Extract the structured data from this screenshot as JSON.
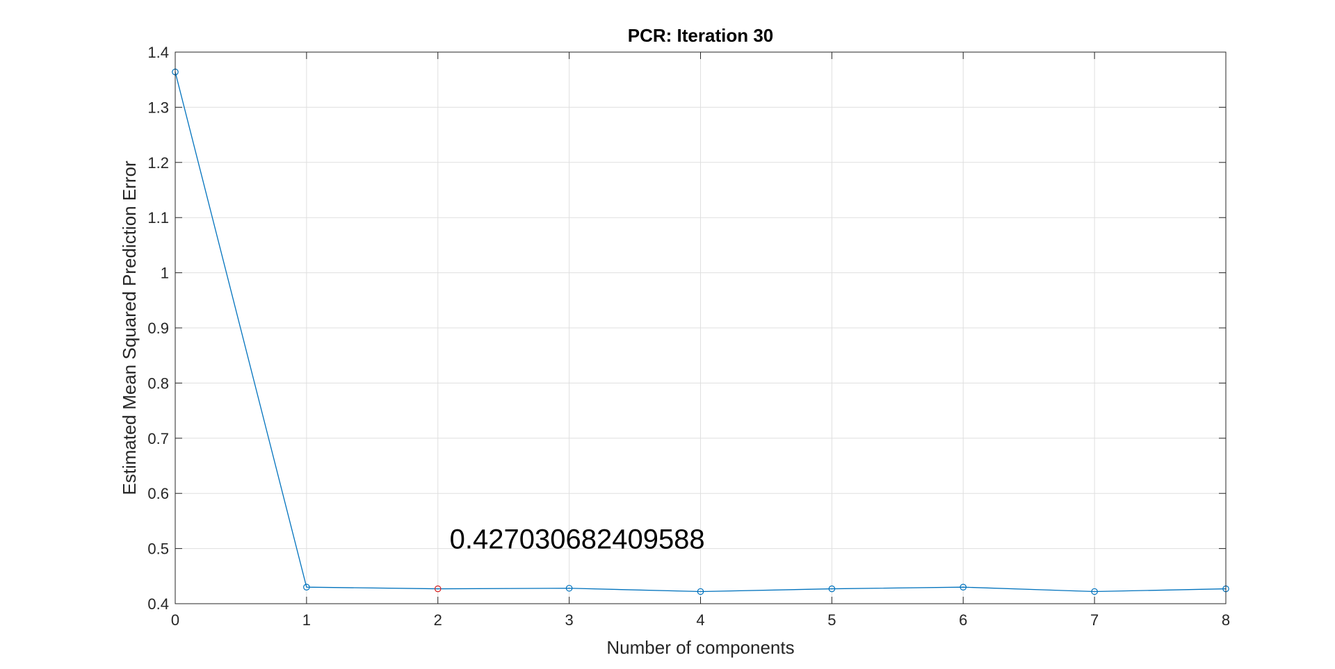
{
  "chart_data": {
    "type": "line",
    "title": "PCR: Iteration 30",
    "xlabel": "Number of components",
    "ylabel": "Estimated Mean Squared Prediction Error",
    "xlim": [
      0,
      8
    ],
    "ylim": [
      0.4,
      1.4
    ],
    "xticks": [
      0,
      1,
      2,
      3,
      4,
      5,
      6,
      7,
      8
    ],
    "yticks": [
      0.4,
      0.5,
      0.6,
      0.7,
      0.8,
      0.9,
      1.0,
      1.1,
      1.2,
      1.3,
      1.4
    ],
    "xtick_labels": [
      "0",
      "1",
      "2",
      "3",
      "4",
      "5",
      "6",
      "7",
      "8"
    ],
    "ytick_labels": [
      "0.4",
      "0.5",
      "0.6",
      "0.7",
      "0.8",
      "0.9",
      "1",
      "1.1",
      "1.2",
      "1.3",
      "1.4"
    ],
    "grid": true,
    "box": true,
    "series": [
      {
        "x": [
          0,
          1,
          2,
          3,
          4,
          5,
          6,
          7,
          8
        ],
        "y": [
          1.364,
          0.43,
          0.427,
          0.428,
          0.422,
          0.427,
          0.43,
          0.422,
          0.427
        ],
        "color": "#0072BD",
        "marker": "circle"
      }
    ],
    "highlight": {
      "x": 2,
      "y": 0.427030682409588,
      "color": "#D62020",
      "marker": "circle"
    },
    "annotation": {
      "text": "0.427030682409588",
      "x": 2.1,
      "y": 0.51
    }
  }
}
